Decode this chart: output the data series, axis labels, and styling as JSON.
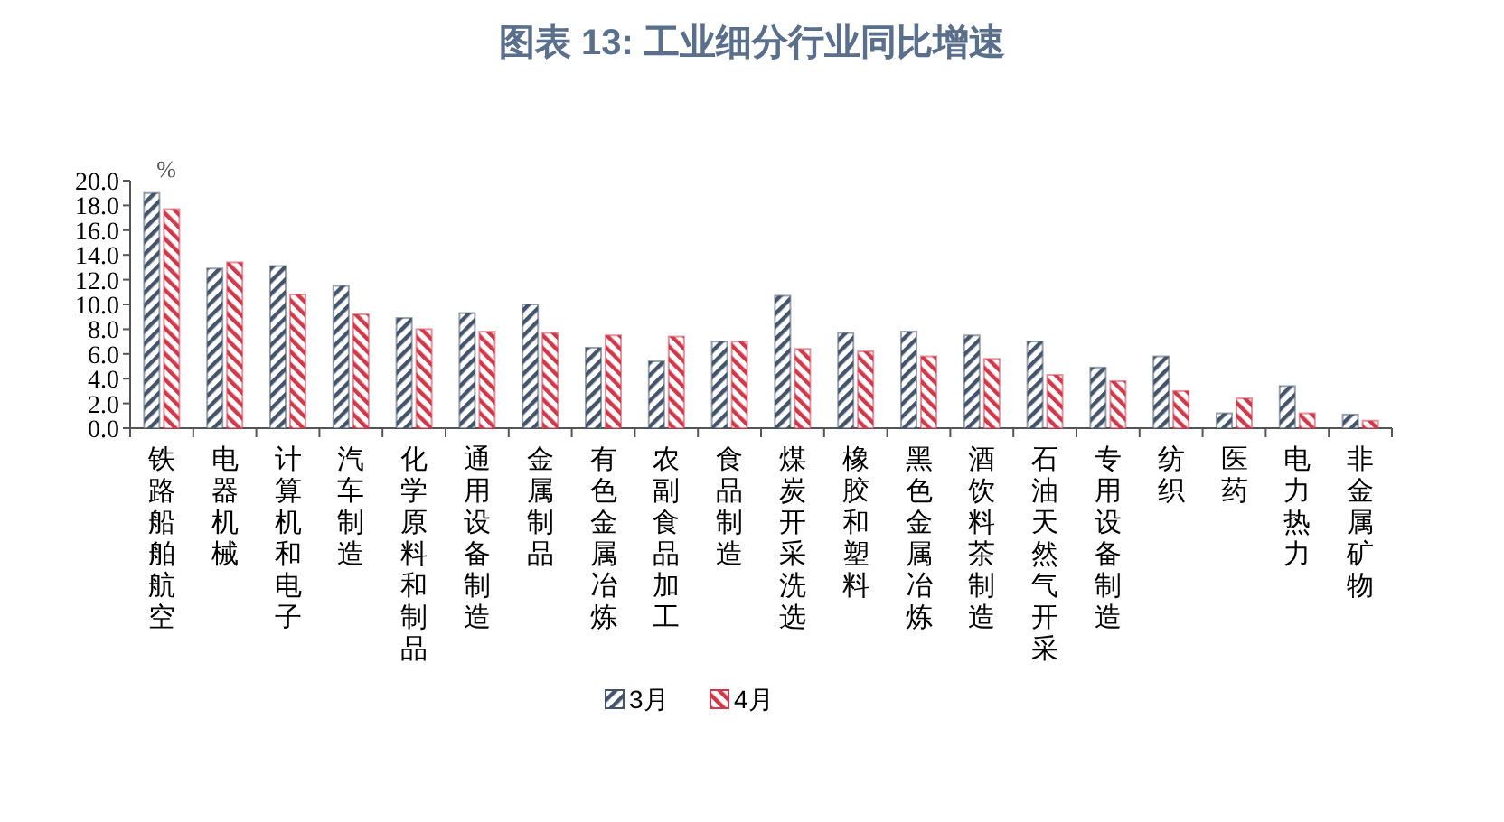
{
  "chart_data": {
    "type": "bar",
    "title": "图表 13: 工业细分行业同比增速",
    "ylabel": "%",
    "categories": [
      "铁路船舶航空",
      "电器机械",
      "计算机和电子",
      "汽车制造",
      "化学原料和制品",
      "通用设备制造",
      "金属制品",
      "有色金属冶炼",
      "农副食品加工",
      "食品制造",
      "煤炭开采洗选",
      "橡胶和塑料",
      "黑色金属冶炼",
      "酒饮料茶制造",
      "石油天然气开采",
      "专用设备制造",
      "纺织",
      "医药",
      "电力热力",
      "非金属矿物"
    ],
    "series": [
      {
        "name": "3月",
        "color": "#44546a",
        "values": [
          19.0,
          12.9,
          13.1,
          11.5,
          8.9,
          9.3,
          10.0,
          6.5,
          5.4,
          7.0,
          10.7,
          7.7,
          7.8,
          7.5,
          7.0,
          4.9,
          5.8,
          1.2,
          3.4,
          1.1
        ]
      },
      {
        "name": "4月",
        "color": "#d0394a",
        "values": [
          17.7,
          13.4,
          10.8,
          9.2,
          8.0,
          7.8,
          7.7,
          7.5,
          7.4,
          7.0,
          6.4,
          6.2,
          5.8,
          5.6,
          4.3,
          3.8,
          3.0,
          2.4,
          1.2,
          0.6
        ]
      }
    ],
    "ylim": [
      0,
      20
    ],
    "yticks": [
      {
        "value": 0,
        "label": "0.0"
      },
      {
        "value": 2,
        "label": "2.0"
      },
      {
        "value": 4,
        "label": "4.0"
      },
      {
        "value": 6,
        "label": "6.0"
      },
      {
        "value": 8,
        "label": "8.0"
      },
      {
        "value": 10,
        "label": "10.0"
      },
      {
        "value": 12,
        "label": "12.0"
      },
      {
        "value": 14,
        "label": "14.0"
      },
      {
        "value": 16,
        "label": "16.0"
      },
      {
        "value": 18,
        "label": "18.0"
      },
      {
        "value": 20,
        "label": "20.0"
      }
    ],
    "grid": false,
    "legend": "bottom"
  }
}
